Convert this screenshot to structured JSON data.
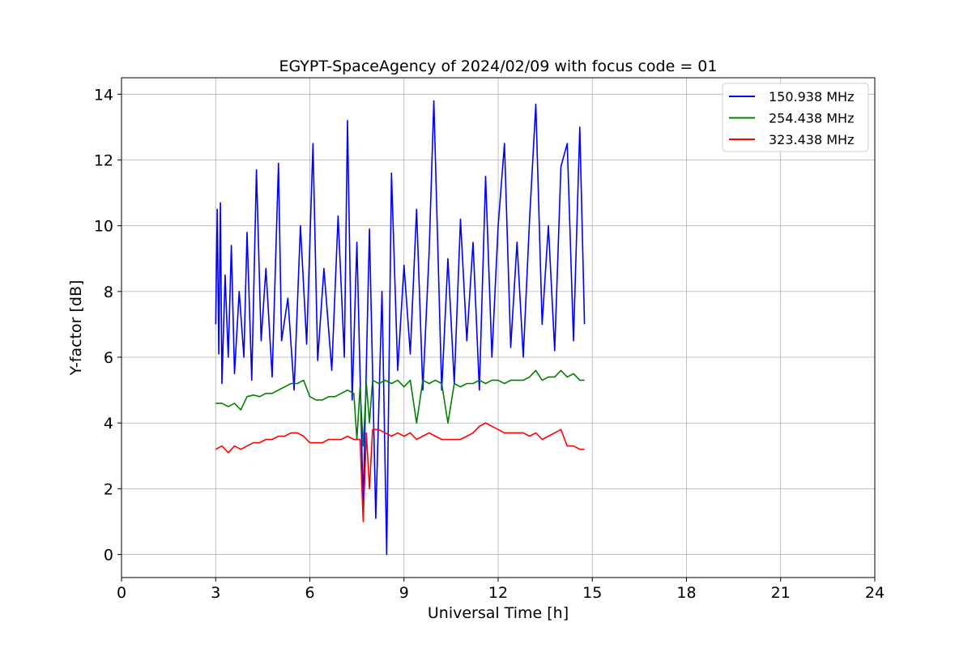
{
  "chart_data": {
    "type": "line",
    "title": "EGYPT-SpaceAgency of 2024/02/09 with focus code = 01",
    "xlabel": "Universal Time [h]",
    "ylabel": "Y-factor [dB]",
    "xlim": [
      0,
      24
    ],
    "ylim": [
      -0.7,
      14.5
    ],
    "xticks": [
      0,
      3,
      6,
      9,
      12,
      15,
      18,
      21,
      24
    ],
    "yticks": [
      0,
      2,
      4,
      6,
      8,
      10,
      12,
      14
    ],
    "grid": true,
    "legend_position": "top-right",
    "series": [
      {
        "name": "150.938 MHz",
        "color": "#0000ff",
        "x": [
          3.0,
          3.05,
          3.1,
          3.15,
          3.2,
          3.3,
          3.4,
          3.5,
          3.6,
          3.75,
          3.9,
          4.0,
          4.15,
          4.3,
          4.45,
          4.6,
          4.8,
          5.0,
          5.1,
          5.3,
          5.5,
          5.7,
          5.9,
          6.1,
          6.25,
          6.45,
          6.7,
          6.9,
          7.1,
          7.2,
          7.35,
          7.5,
          7.7,
          7.9,
          8.1,
          8.3,
          8.45,
          8.6,
          8.8,
          9.0,
          9.2,
          9.4,
          9.6,
          9.8,
          9.95,
          10.2,
          10.4,
          10.6,
          10.8,
          11.0,
          11.2,
          11.4,
          11.6,
          11.8,
          12.0,
          12.2,
          12.4,
          12.6,
          12.8,
          13.0,
          13.2,
          13.4,
          13.6,
          13.8,
          14.0,
          14.2,
          14.4,
          14.6,
          14.75
        ],
        "y": [
          7.0,
          10.5,
          6.1,
          10.7,
          5.2,
          8.5,
          6.0,
          9.4,
          5.5,
          8.0,
          6.0,
          9.8,
          5.3,
          11.7,
          6.5,
          8.7,
          5.4,
          11.9,
          6.5,
          7.8,
          5.0,
          10.0,
          6.4,
          12.5,
          5.9,
          8.7,
          5.6,
          10.3,
          6.0,
          13.2,
          4.7,
          9.5,
          1.5,
          9.9,
          1.1,
          8.0,
          0.0,
          11.6,
          5.6,
          8.8,
          6.1,
          10.5,
          5.0,
          9.2,
          13.8,
          5.0,
          9.0,
          5.2,
          10.2,
          6.5,
          9.5,
          5.0,
          11.5,
          6.0,
          10.0,
          12.5,
          6.3,
          9.5,
          6.0,
          10.2,
          13.7,
          7.0,
          10.0,
          6.2,
          11.8,
          12.5,
          6.5,
          13.0,
          7.0
        ]
      },
      {
        "name": "254.438 MHz",
        "color": "#008000",
        "x": [
          3.0,
          3.2,
          3.4,
          3.6,
          3.8,
          4.0,
          4.2,
          4.4,
          4.6,
          4.8,
          5.0,
          5.2,
          5.4,
          5.6,
          5.8,
          6.0,
          6.2,
          6.4,
          6.6,
          6.8,
          7.0,
          7.2,
          7.4,
          7.5,
          7.6,
          7.7,
          7.8,
          7.9,
          8.0,
          8.2,
          8.4,
          8.6,
          8.8,
          9.0,
          9.2,
          9.4,
          9.6,
          9.8,
          10.0,
          10.2,
          10.4,
          10.6,
          10.8,
          11.0,
          11.2,
          11.4,
          11.6,
          11.8,
          12.0,
          12.2,
          12.4,
          12.6,
          12.8,
          13.0,
          13.2,
          13.4,
          13.6,
          13.8,
          14.0,
          14.2,
          14.4,
          14.6,
          14.75
        ],
        "y": [
          4.6,
          4.6,
          4.5,
          4.6,
          4.4,
          4.8,
          4.85,
          4.8,
          4.9,
          4.9,
          5.0,
          5.1,
          5.2,
          5.2,
          5.3,
          4.8,
          4.7,
          4.7,
          4.8,
          4.8,
          4.9,
          5.0,
          4.9,
          3.5,
          5.1,
          3.3,
          5.2,
          4.0,
          5.3,
          5.2,
          5.3,
          5.2,
          5.3,
          5.1,
          5.3,
          4.0,
          5.3,
          5.2,
          5.3,
          5.2,
          4.0,
          5.2,
          5.1,
          5.2,
          5.2,
          5.3,
          5.2,
          5.3,
          5.3,
          5.2,
          5.3,
          5.3,
          5.3,
          5.4,
          5.6,
          5.3,
          5.4,
          5.4,
          5.6,
          5.4,
          5.5,
          5.3,
          5.3
        ]
      },
      {
        "name": "323.438 MHz",
        "color": "#ff0000",
        "x": [
          3.0,
          3.2,
          3.4,
          3.6,
          3.8,
          4.0,
          4.2,
          4.4,
          4.6,
          4.8,
          5.0,
          5.2,
          5.4,
          5.6,
          5.8,
          6.0,
          6.2,
          6.4,
          6.6,
          6.8,
          7.0,
          7.2,
          7.4,
          7.6,
          7.7,
          7.8,
          7.9,
          8.0,
          8.2,
          8.4,
          8.6,
          8.8,
          9.0,
          9.2,
          9.4,
          9.6,
          9.8,
          10.0,
          10.2,
          10.4,
          10.6,
          10.8,
          11.0,
          11.2,
          11.4,
          11.6,
          11.8,
          12.0,
          12.2,
          12.4,
          12.6,
          12.8,
          13.0,
          13.2,
          13.4,
          13.6,
          13.8,
          14.0,
          14.2,
          14.4,
          14.6,
          14.75
        ],
        "y": [
          3.2,
          3.3,
          3.1,
          3.3,
          3.2,
          3.3,
          3.4,
          3.4,
          3.5,
          3.5,
          3.6,
          3.6,
          3.7,
          3.7,
          3.6,
          3.4,
          3.4,
          3.4,
          3.5,
          3.5,
          3.5,
          3.6,
          3.5,
          3.5,
          1.0,
          3.7,
          2.0,
          3.8,
          3.8,
          3.7,
          3.6,
          3.7,
          3.6,
          3.7,
          3.5,
          3.6,
          3.7,
          3.6,
          3.5,
          3.5,
          3.5,
          3.5,
          3.6,
          3.7,
          3.9,
          4.0,
          3.9,
          3.8,
          3.7,
          3.7,
          3.7,
          3.7,
          3.6,
          3.7,
          3.5,
          3.6,
          3.7,
          3.8,
          3.3,
          3.3,
          3.2,
          3.2
        ]
      }
    ]
  }
}
